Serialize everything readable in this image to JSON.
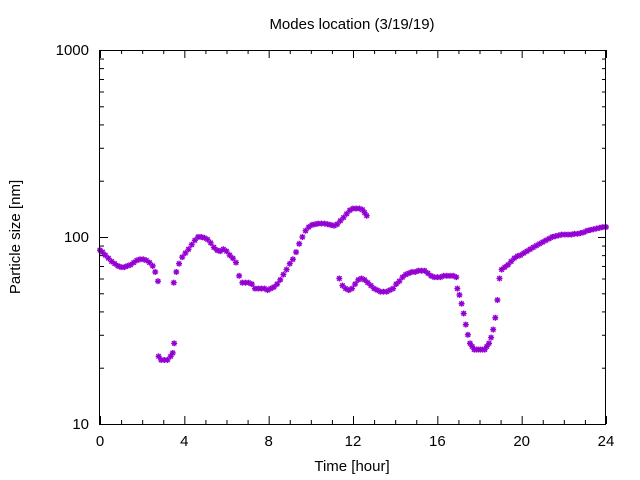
{
  "chart_data": {
    "type": "scatter",
    "title": "Modes location (3/19/19)",
    "xlabel": "Time [hour]",
    "ylabel": "Particle size [nm]",
    "xlim": [
      0,
      24
    ],
    "ylim": [
      10,
      1000
    ],
    "yscale": "log",
    "xticks": [
      0,
      4,
      8,
      12,
      16,
      20,
      24
    ],
    "yticks": [
      10,
      100,
      1000
    ],
    "grid": false,
    "marker": "star",
    "color": "#9400d3",
    "series": [
      {
        "x": [
          0,
          0.12,
          0.25,
          0.4,
          0.55,
          0.7,
          0.85,
          1.0,
          1.15,
          1.3,
          1.45,
          1.6,
          1.75,
          1.9,
          2.05,
          2.2,
          2.35,
          2.5,
          2.62,
          2.75,
          2.78,
          2.9,
          3.05,
          3.2,
          3.35,
          3.45,
          3.52,
          3.5,
          3.62,
          3.75,
          3.9,
          4.05,
          4.2,
          4.35,
          4.5,
          4.65,
          4.8,
          4.95,
          5.1,
          5.25,
          5.4,
          5.55,
          5.7,
          5.85,
          6.0,
          6.15,
          6.3,
          6.45,
          6.6,
          6.75,
          6.9,
          7.05,
          7.2,
          7.35,
          7.5,
          7.65,
          7.8,
          7.95,
          8.1,
          8.25,
          8.4,
          8.55,
          8.7,
          8.85,
          9.0,
          9.15,
          9.3,
          9.45,
          9.6,
          9.75,
          9.9,
          10.05,
          10.2,
          10.35,
          10.5,
          10.65,
          10.8,
          10.95,
          11.1,
          11.25,
          11.4,
          11.55,
          11.7,
          11.85,
          12.0,
          12.15,
          12.3,
          12.45,
          12.55,
          12.65,
          11.35,
          11.5,
          11.65,
          11.8,
          11.95,
          12.1,
          12.25,
          12.4,
          12.55,
          12.7,
          12.85,
          13.0,
          13.15,
          13.3,
          13.45,
          13.6,
          13.75,
          13.9,
          14.05,
          14.2,
          14.35,
          14.5,
          14.65,
          14.8,
          14.95,
          15.1,
          15.25,
          15.4,
          15.55,
          15.7,
          15.85,
          16.0,
          16.15,
          16.3,
          16.45,
          16.6,
          16.75,
          16.9,
          16.95,
          17.05,
          17.15,
          17.25,
          17.35,
          17.45,
          17.55,
          17.65,
          17.75,
          17.85,
          17.95,
          18.05,
          18.15,
          18.25,
          18.35,
          18.45,
          18.55,
          18.65,
          18.75,
          18.85,
          18.95,
          19.05,
          19.2,
          19.35,
          19.5,
          19.65,
          19.8,
          19.95,
          20.1,
          20.25,
          20.4,
          20.55,
          20.7,
          20.85,
          21.0,
          21.15,
          21.3,
          21.45,
          21.6,
          21.75,
          21.9,
          22.05,
          22.2,
          22.35,
          22.5,
          22.65,
          22.8,
          22.95,
          23.1,
          23.25,
          23.4,
          23.55,
          23.7,
          23.85,
          24.0
        ],
        "y": [
          85,
          83,
          80,
          77,
          74,
          72,
          70,
          69,
          69,
          70,
          71,
          73,
          75,
          76,
          76,
          75,
          73,
          70,
          65,
          58,
          23,
          22,
          22,
          22,
          23,
          24,
          27,
          57,
          65,
          72,
          78,
          82,
          86,
          91,
          96,
          100,
          100,
          99,
          97,
          93,
          88,
          85,
          84,
          86,
          84,
          80,
          77,
          73,
          62,
          57,
          57,
          57,
          56,
          53,
          53,
          53,
          53,
          52,
          53,
          54,
          56,
          59,
          63,
          67,
          72,
          76,
          83,
          92,
          100,
          108,
          113,
          116,
          117,
          118,
          118,
          118,
          117,
          116,
          115,
          117,
          122,
          127,
          133,
          139,
          142,
          142,
          142,
          140,
          135,
          130,
          60,
          55,
          53,
          52,
          53,
          56,
          59,
          60,
          59,
          57,
          55,
          53,
          52,
          51,
          51,
          51,
          52,
          53,
          56,
          58,
          61,
          63,
          64,
          65,
          65,
          66,
          66,
          66,
          64,
          62,
          61,
          61,
          61,
          62,
          62,
          62,
          62,
          61,
          53,
          49,
          44,
          39,
          34,
          30,
          27,
          26,
          25,
          25,
          25,
          25,
          25,
          25,
          26,
          27,
          29,
          32,
          37,
          46,
          60,
          67,
          69,
          71,
          74,
          77,
          79,
          80,
          82,
          84,
          86,
          88,
          90,
          92,
          94,
          96,
          98,
          100,
          101,
          102,
          103,
          103,
          103,
          103,
          104,
          104,
          105,
          106,
          108,
          109,
          110,
          111,
          112,
          113,
          113
        ]
      }
    ]
  }
}
